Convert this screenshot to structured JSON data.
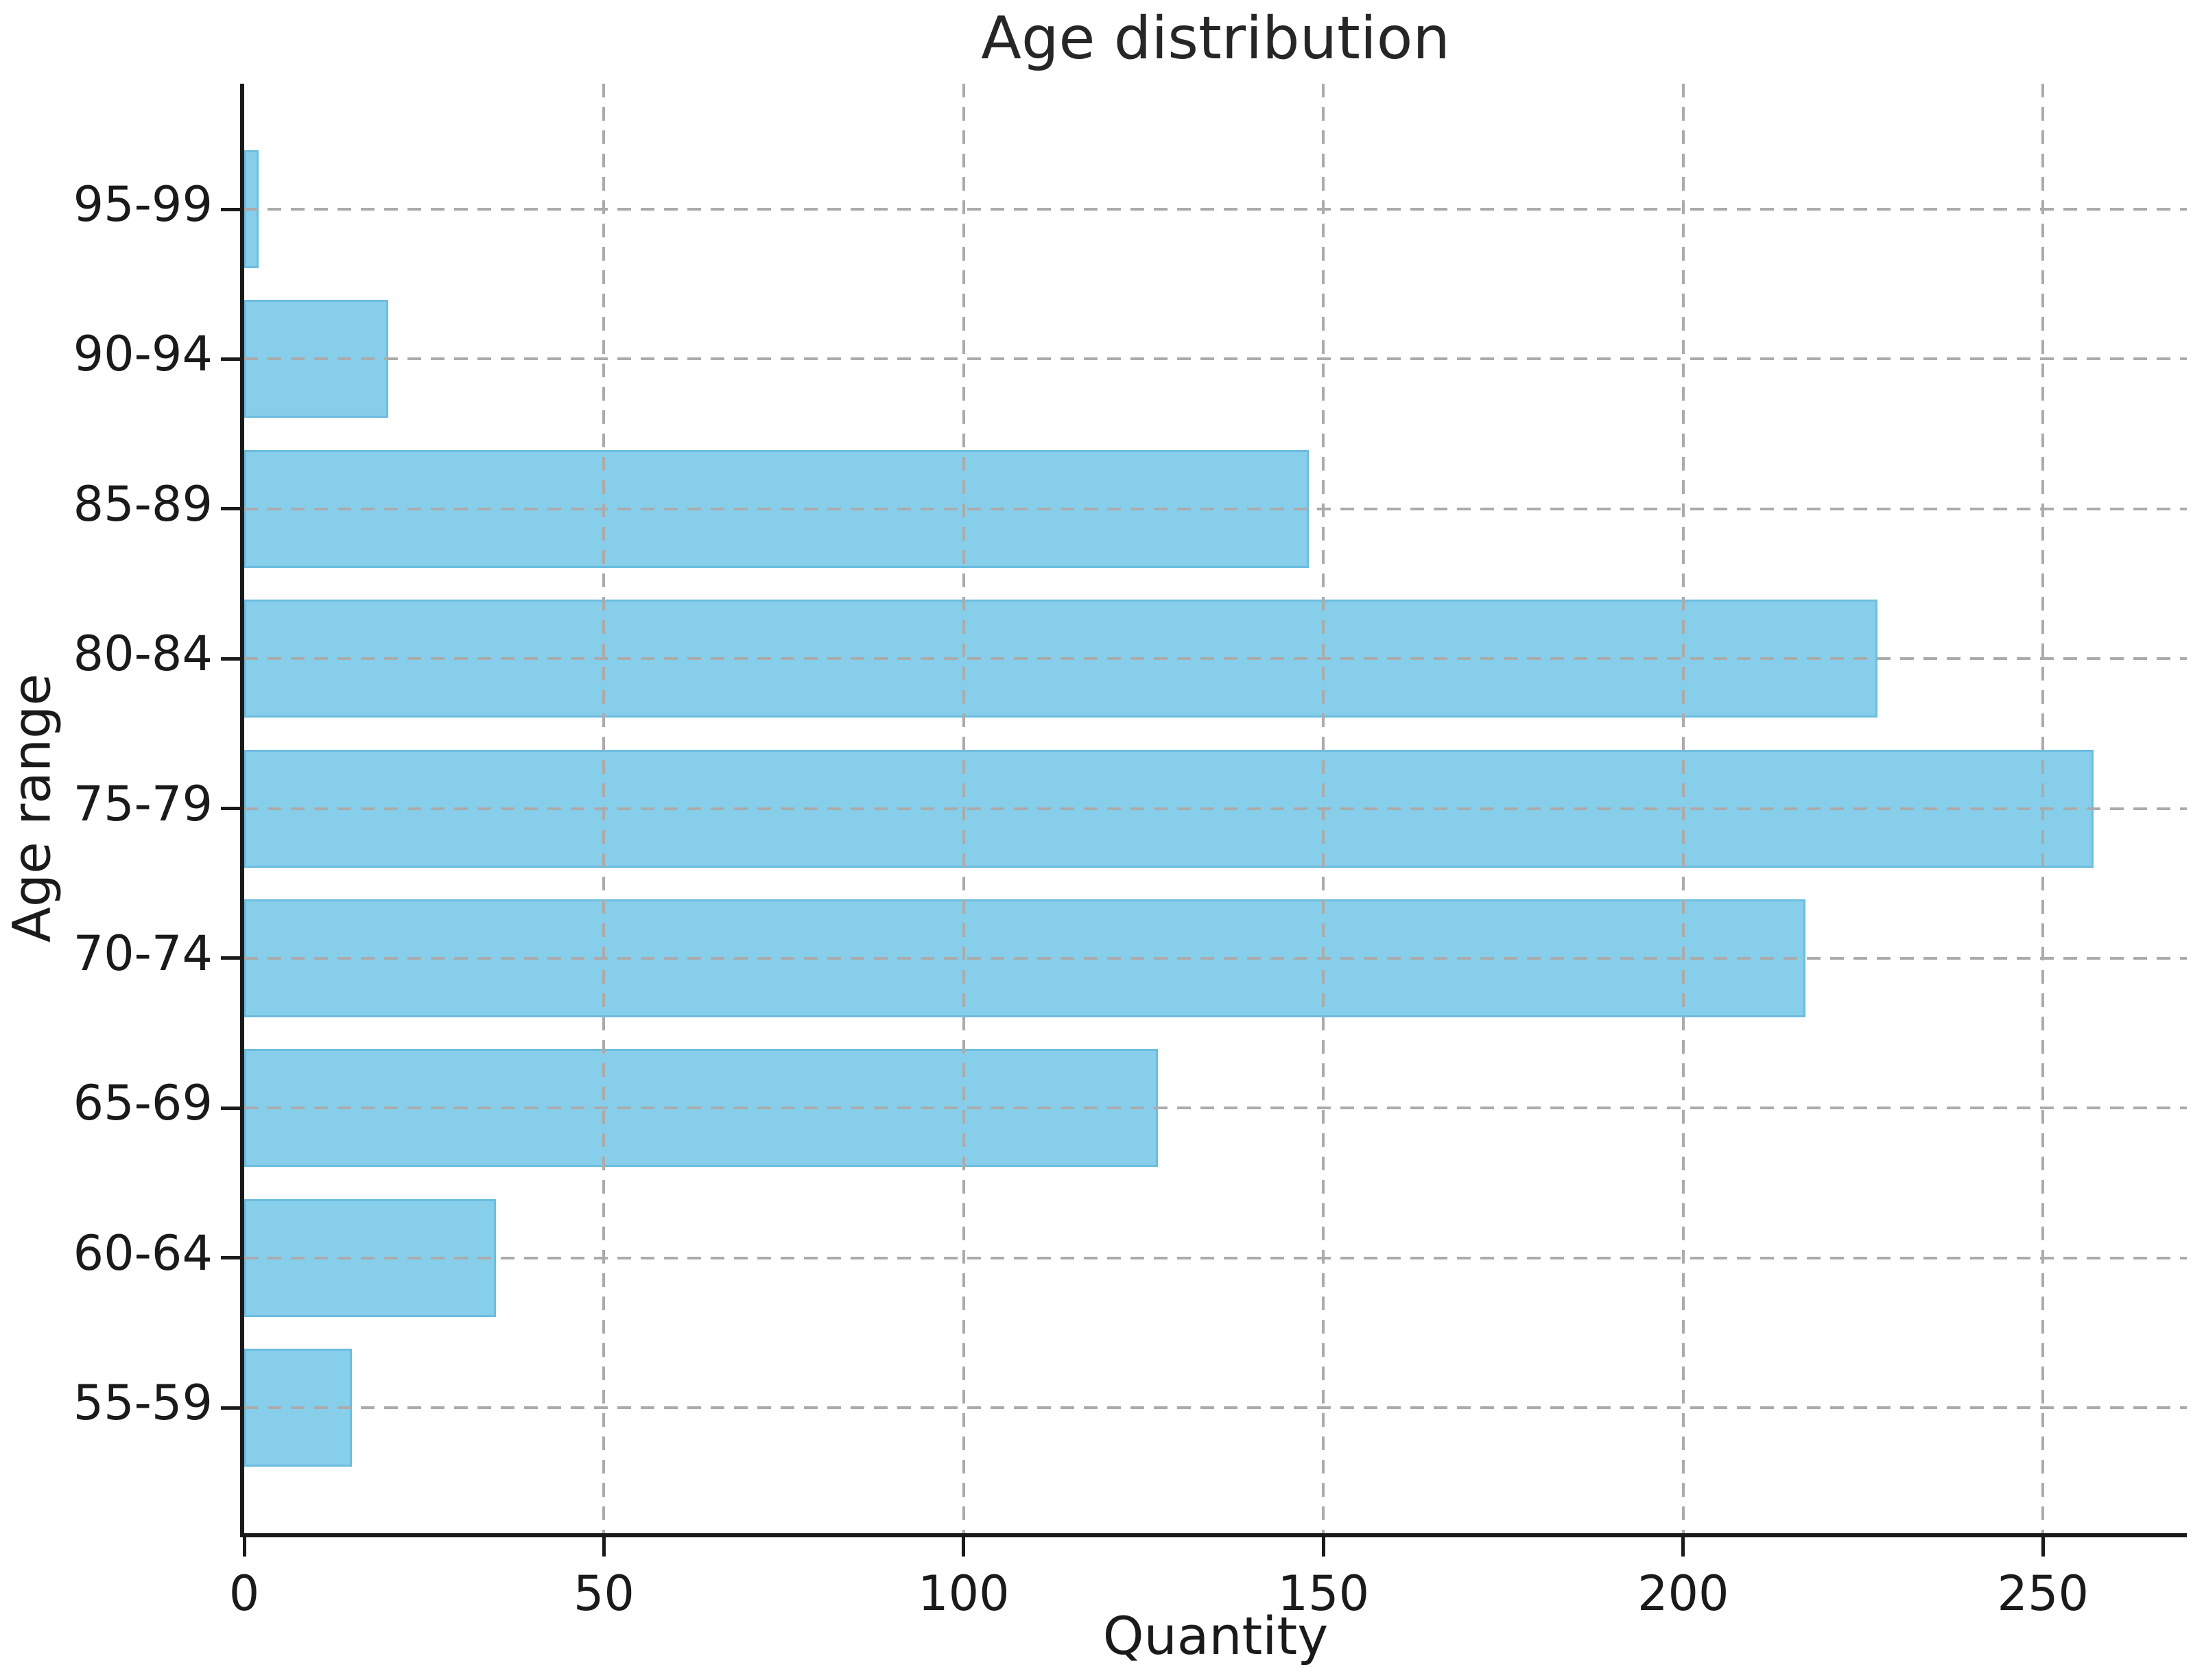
{
  "chart_data": {
    "type": "bar",
    "orientation": "horizontal",
    "title": "Age distribution",
    "xlabel": "Quantity",
    "ylabel": "Age range",
    "categories": [
      "95-99",
      "90-94",
      "85-89",
      "80-84",
      "75-79",
      "70-74",
      "65-69",
      "60-64",
      "55-59"
    ],
    "values": [
      2,
      20,
      148,
      227,
      257,
      217,
      127,
      35,
      15
    ],
    "x_ticks": [
      0,
      50,
      100,
      150,
      200,
      250
    ],
    "xlim": [
      0,
      270
    ],
    "grid": true,
    "grid_style": "dashed",
    "legend": "none",
    "bar_color": "#87ceeb",
    "bar_edge_color": "#6cbde0",
    "grid_color": "#ababab",
    "axis_color": "#1a1a1a",
    "background_color": "#ffffff"
  }
}
